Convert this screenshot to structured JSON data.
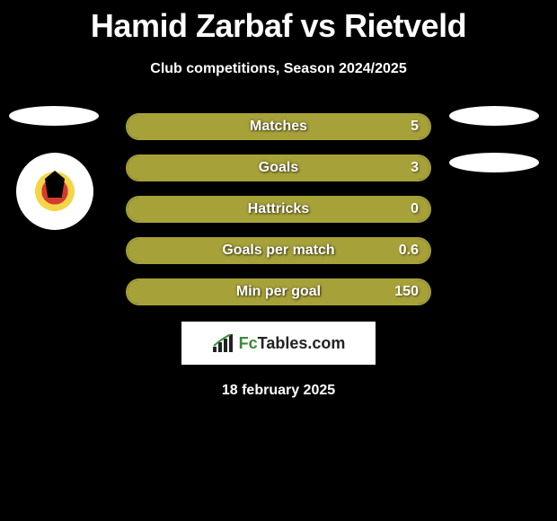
{
  "title": "Hamid Zarbaf vs Rietveld",
  "subtitle": "Club competitions, Season 2024/2025",
  "date": "18 february 2025",
  "logo": {
    "text_prefix": "Fc",
    "text_main": "Tables",
    "text_suffix": ".com",
    "prefix_color": "#3a8a3a",
    "main_color": "#222222"
  },
  "barStyle": {
    "border_color": "#a7a139",
    "fill_color": "#a7a139",
    "text_color": "#ffffff",
    "height": 30,
    "radius": 15,
    "label_fontsize": 16
  },
  "stats": [
    {
      "label": "Matches",
      "value": "5",
      "fill_pct": 100
    },
    {
      "label": "Goals",
      "value": "3",
      "fill_pct": 100
    },
    {
      "label": "Hattricks",
      "value": "0",
      "fill_pct": 100
    },
    {
      "label": "Goals per match",
      "value": "0.6",
      "fill_pct": 100
    },
    {
      "label": "Min per goal",
      "value": "150",
      "fill_pct": 100
    }
  ],
  "players": {
    "left": {
      "has_crest": true
    },
    "right": {
      "has_crest": false
    }
  },
  "colors": {
    "background": "#000000",
    "title": "#ffffff",
    "silhouette": "#ffffff"
  }
}
